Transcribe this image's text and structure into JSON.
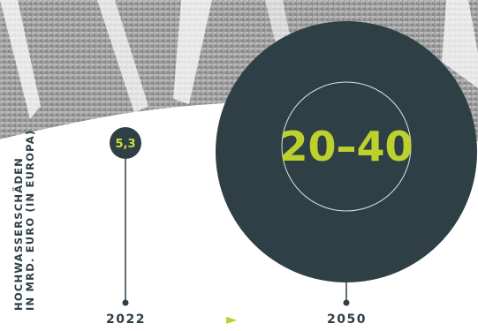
{
  "chart_data": {
    "type": "bubble",
    "ylabel": [
      "HOCHWASSERSCHÄDEN",
      "IN MRD. EURO (IN EUROPA)"
    ],
    "points": [
      {
        "year": "2022",
        "value_label": "5,3",
        "value": 5.3
      },
      {
        "year": "2050",
        "value_label": "20–40",
        "value_low": 20,
        "value_high": 40
      }
    ],
    "arrow": "►"
  },
  "colors": {
    "dark": "#2e3f46",
    "accent": "#bcd12b",
    "text_light": "#cde038",
    "photo": "#a8a8a8"
  }
}
